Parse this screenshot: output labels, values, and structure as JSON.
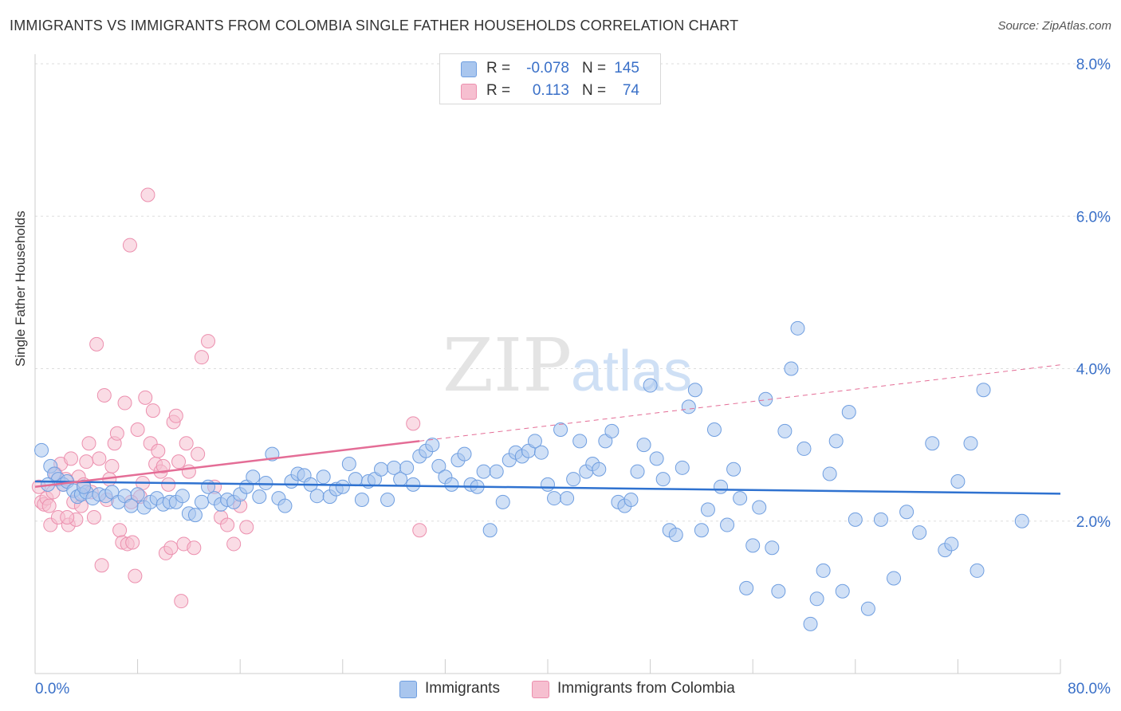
{
  "title": "IMMIGRANTS VS IMMIGRANTS FROM COLOMBIA SINGLE FATHER HOUSEHOLDS CORRELATION CHART",
  "source": "Source: ZipAtlas.com",
  "watermark": {
    "zip": "ZIP",
    "atlas": "atlas"
  },
  "colors": {
    "blue_fill": "#a9c6ee",
    "blue_stroke": "#6f9ee0",
    "blue_line": "#2f72d0",
    "pink_fill": "#f6bfd0",
    "pink_stroke": "#ec8fae",
    "pink_line": "#e46d96",
    "tick_text": "#3a70c8"
  },
  "legend_top": {
    "rows": [
      {
        "r_label": "R =",
        "r_value": "-0.078",
        "n_label": "N =",
        "n_value": "145"
      },
      {
        "r_label": "R =",
        "r_value": "0.113",
        "n_label": "N =",
        "n_value": "74"
      }
    ]
  },
  "legend_bottom": {
    "items": [
      "Immigrants",
      "Immigrants from Colombia"
    ]
  },
  "chart_data": {
    "type": "scatter",
    "ylabel": "Single Father Households",
    "x_ticks": [
      "0.0%",
      "80.0%"
    ],
    "y_ticks": [
      "2.0%",
      "4.0%",
      "6.0%",
      "8.0%"
    ],
    "xlim": [
      0,
      80
    ],
    "ylim": [
      0,
      8
    ],
    "series": [
      {
        "name": "Immigrants",
        "trend": {
          "x0": 0,
          "y0": 2.52,
          "x1": 80,
          "y1": 2.36
        },
        "points": [
          [
            0.5,
            2.93
          ],
          [
            1.2,
            2.72
          ],
          [
            1.5,
            2.62
          ],
          [
            1.8,
            2.55
          ],
          [
            2.2,
            2.48
          ],
          [
            2.5,
            2.52
          ],
          [
            3.0,
            2.4
          ],
          [
            3.3,
            2.32
          ],
          [
            3.6,
            2.35
          ],
          [
            4.0,
            2.38
          ],
          [
            4.5,
            2.3
          ],
          [
            5.0,
            2.35
          ],
          [
            5.5,
            2.33
          ],
          [
            6.0,
            2.38
          ],
          [
            6.5,
            2.25
          ],
          [
            7.0,
            2.33
          ],
          [
            7.5,
            2.2
          ],
          [
            8.0,
            2.35
          ],
          [
            8.5,
            2.18
          ],
          [
            9.0,
            2.25
          ],
          [
            9.5,
            2.3
          ],
          [
            10.0,
            2.22
          ],
          [
            10.5,
            2.25
          ],
          [
            11.0,
            2.25
          ],
          [
            11.5,
            2.33
          ],
          [
            12.0,
            2.1
          ],
          [
            12.5,
            2.08
          ],
          [
            13.0,
            2.25
          ],
          [
            13.5,
            2.45
          ],
          [
            14.0,
            2.3
          ],
          [
            14.5,
            2.22
          ],
          [
            15.0,
            2.28
          ],
          [
            15.5,
            2.25
          ],
          [
            16.0,
            2.35
          ],
          [
            16.5,
            2.45
          ],
          [
            17.0,
            2.58
          ],
          [
            17.5,
            2.32
          ],
          [
            18.0,
            2.5
          ],
          [
            18.5,
            2.88
          ],
          [
            19.0,
            2.3
          ],
          [
            19.5,
            2.2
          ],
          [
            20.0,
            2.52
          ],
          [
            20.5,
            2.62
          ],
          [
            21.0,
            2.6
          ],
          [
            21.5,
            2.48
          ],
          [
            22.0,
            2.33
          ],
          [
            22.5,
            2.58
          ],
          [
            23.0,
            2.32
          ],
          [
            23.5,
            2.42
          ],
          [
            24.0,
            2.45
          ],
          [
            24.5,
            2.75
          ],
          [
            25.0,
            2.55
          ],
          [
            25.5,
            2.28
          ],
          [
            26.0,
            2.52
          ],
          [
            26.5,
            2.55
          ],
          [
            27.0,
            2.68
          ],
          [
            27.5,
            2.28
          ],
          [
            28.0,
            2.7
          ],
          [
            28.5,
            2.55
          ],
          [
            29.0,
            2.7
          ],
          [
            29.5,
            2.48
          ],
          [
            30.0,
            2.85
          ],
          [
            30.5,
            2.92
          ],
          [
            31.0,
            3.0
          ],
          [
            31.5,
            2.72
          ],
          [
            32.0,
            2.58
          ],
          [
            32.5,
            2.48
          ],
          [
            33.0,
            2.8
          ],
          [
            33.5,
            2.88
          ],
          [
            34.0,
            2.48
          ],
          [
            34.5,
            2.45
          ],
          [
            35.0,
            2.65
          ],
          [
            35.5,
            1.88
          ],
          [
            36.0,
            2.65
          ],
          [
            36.5,
            2.25
          ],
          [
            37.0,
            2.8
          ],
          [
            37.5,
            2.9
          ],
          [
            38.0,
            2.85
          ],
          [
            38.5,
            2.92
          ],
          [
            39.0,
            3.05
          ],
          [
            39.5,
            2.9
          ],
          [
            40.0,
            2.48
          ],
          [
            40.5,
            2.3
          ],
          [
            41.0,
            3.2
          ],
          [
            41.5,
            2.3
          ],
          [
            42.0,
            2.55
          ],
          [
            42.5,
            3.05
          ],
          [
            43.0,
            2.65
          ],
          [
            43.5,
            2.75
          ],
          [
            44.0,
            2.68
          ],
          [
            44.5,
            3.05
          ],
          [
            45.0,
            3.18
          ],
          [
            45.5,
            2.25
          ],
          [
            46.0,
            2.2
          ],
          [
            46.5,
            2.28
          ],
          [
            47.0,
            2.65
          ],
          [
            47.5,
            3.0
          ],
          [
            48.0,
            3.78
          ],
          [
            48.5,
            2.82
          ],
          [
            49.0,
            2.55
          ],
          [
            49.5,
            1.88
          ],
          [
            50.0,
            1.82
          ],
          [
            50.5,
            2.7
          ],
          [
            51.0,
            3.5
          ],
          [
            51.5,
            3.72
          ],
          [
            52.0,
            1.88
          ],
          [
            52.5,
            2.15
          ],
          [
            53.0,
            3.2
          ],
          [
            53.5,
            2.45
          ],
          [
            54.0,
            1.95
          ],
          [
            54.5,
            2.68
          ],
          [
            55.0,
            2.3
          ],
          [
            55.5,
            1.12
          ],
          [
            56.0,
            1.68
          ],
          [
            56.5,
            2.18
          ],
          [
            57.0,
            3.6
          ],
          [
            57.5,
            1.65
          ],
          [
            58.0,
            1.08
          ],
          [
            58.5,
            3.18
          ],
          [
            59.0,
            4.0
          ],
          [
            59.5,
            4.53
          ],
          [
            60.0,
            2.95
          ],
          [
            60.5,
            0.65
          ],
          [
            61.0,
            0.98
          ],
          [
            61.5,
            1.35
          ],
          [
            62.0,
            2.62
          ],
          [
            62.5,
            3.05
          ],
          [
            63.0,
            1.08
          ],
          [
            63.5,
            3.43
          ],
          [
            64.0,
            2.02
          ],
          [
            65.0,
            0.85
          ],
          [
            66.0,
            2.02
          ],
          [
            67.0,
            1.25
          ],
          [
            68.0,
            2.12
          ],
          [
            69.0,
            1.85
          ],
          [
            70.0,
            3.02
          ],
          [
            71.0,
            1.62
          ],
          [
            71.5,
            1.7
          ],
          [
            72.0,
            2.52
          ],
          [
            73.0,
            3.02
          ],
          [
            73.5,
            1.35
          ],
          [
            74.0,
            3.72
          ],
          [
            77.0,
            2.0
          ],
          [
            1.0,
            2.48
          ],
          [
            3.8,
            2.45
          ]
        ]
      },
      {
        "name": "Immigrants from Colombia",
        "trend": {
          "x0": 0,
          "y0": 2.45,
          "x1": 80,
          "y1": 4.05,
          "solid_until": 30
        },
        "points": [
          [
            0.3,
            2.45
          ],
          [
            0.5,
            2.25
          ],
          [
            0.7,
            2.22
          ],
          [
            0.9,
            2.3
          ],
          [
            1.1,
            2.2
          ],
          [
            1.2,
            1.95
          ],
          [
            1.4,
            2.38
          ],
          [
            1.6,
            2.62
          ],
          [
            1.8,
            2.05
          ],
          [
            2.0,
            2.75
          ],
          [
            2.2,
            2.48
          ],
          [
            2.4,
            2.55
          ],
          [
            2.6,
            1.95
          ],
          [
            2.8,
            2.82
          ],
          [
            3.0,
            2.25
          ],
          [
            3.2,
            2.02
          ],
          [
            3.4,
            2.58
          ],
          [
            3.6,
            2.2
          ],
          [
            3.8,
            2.48
          ],
          [
            4.0,
            2.78
          ],
          [
            4.2,
            3.02
          ],
          [
            4.4,
            2.38
          ],
          [
            4.6,
            2.05
          ],
          [
            4.8,
            4.32
          ],
          [
            5.0,
            2.82
          ],
          [
            5.2,
            1.42
          ],
          [
            5.4,
            3.65
          ],
          [
            5.6,
            2.28
          ],
          [
            5.8,
            2.55
          ],
          [
            6.0,
            2.72
          ],
          [
            6.2,
            3.02
          ],
          [
            6.4,
            3.15
          ],
          [
            6.6,
            1.88
          ],
          [
            6.8,
            1.72
          ],
          [
            7.0,
            3.55
          ],
          [
            7.2,
            1.7
          ],
          [
            7.4,
            5.62
          ],
          [
            7.6,
            1.72
          ],
          [
            7.8,
            1.28
          ],
          [
            8.0,
            3.2
          ],
          [
            8.2,
            2.32
          ],
          [
            8.4,
            2.5
          ],
          [
            8.6,
            3.62
          ],
          [
            8.8,
            6.28
          ],
          [
            9.0,
            3.02
          ],
          [
            9.2,
            3.45
          ],
          [
            9.4,
            2.75
          ],
          [
            9.6,
            2.92
          ],
          [
            9.8,
            2.65
          ],
          [
            10.0,
            2.72
          ],
          [
            10.2,
            1.58
          ],
          [
            10.4,
            2.48
          ],
          [
            10.6,
            1.65
          ],
          [
            10.8,
            3.3
          ],
          [
            11.0,
            3.38
          ],
          [
            11.2,
            2.78
          ],
          [
            11.4,
            0.95
          ],
          [
            11.6,
            1.7
          ],
          [
            11.8,
            3.02
          ],
          [
            12.0,
            2.65
          ],
          [
            12.4,
            1.65
          ],
          [
            12.7,
            2.88
          ],
          [
            13.0,
            4.15
          ],
          [
            13.5,
            4.36
          ],
          [
            14.0,
            2.45
          ],
          [
            14.5,
            2.05
          ],
          [
            15.0,
            1.95
          ],
          [
            15.5,
            1.7
          ],
          [
            16.0,
            2.2
          ],
          [
            16.5,
            1.92
          ],
          [
            2.5,
            2.05
          ],
          [
            7.5,
            2.25
          ],
          [
            29.5,
            3.28
          ],
          [
            30.0,
            1.88
          ]
        ]
      }
    ]
  }
}
